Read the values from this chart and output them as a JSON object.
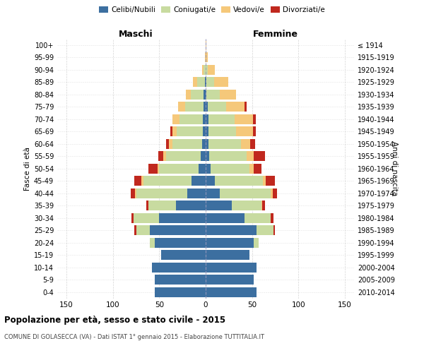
{
  "age_groups": [
    "0-4",
    "5-9",
    "10-14",
    "15-19",
    "20-24",
    "25-29",
    "30-34",
    "35-39",
    "40-44",
    "45-49",
    "50-54",
    "55-59",
    "60-64",
    "65-69",
    "70-74",
    "75-79",
    "80-84",
    "85-89",
    "90-94",
    "95-99",
    "100+"
  ],
  "birth_years": [
    "2010-2014",
    "2005-2009",
    "2000-2004",
    "1995-1999",
    "1990-1994",
    "1985-1989",
    "1980-1984",
    "1975-1979",
    "1970-1974",
    "1965-1969",
    "1960-1964",
    "1955-1959",
    "1950-1954",
    "1945-1949",
    "1940-1944",
    "1935-1939",
    "1930-1934",
    "1925-1929",
    "1920-1924",
    "1915-1919",
    "≤ 1914"
  ],
  "male": {
    "celibi": [
      55,
      55,
      58,
      48,
      55,
      60,
      50,
      32,
      20,
      15,
      8,
      5,
      4,
      3,
      3,
      2,
      2,
      1,
      0,
      0,
      0
    ],
    "coniugati": [
      0,
      0,
      0,
      0,
      5,
      15,
      28,
      30,
      55,
      52,
      42,
      38,
      32,
      28,
      25,
      20,
      14,
      8,
      2,
      0,
      0
    ],
    "vedovi": [
      0,
      0,
      0,
      0,
      0,
      0,
      0,
      0,
      1,
      2,
      2,
      3,
      4,
      5,
      8,
      8,
      5,
      5,
      2,
      1,
      0
    ],
    "divorziati": [
      0,
      0,
      0,
      0,
      0,
      2,
      2,
      2,
      5,
      8,
      10,
      5,
      3,
      2,
      0,
      0,
      0,
      0,
      0,
      0,
      0
    ]
  },
  "female": {
    "nubili": [
      55,
      52,
      55,
      47,
      52,
      55,
      42,
      28,
      15,
      10,
      5,
      4,
      3,
      3,
      3,
      2,
      1,
      1,
      0,
      0,
      0
    ],
    "coniugate": [
      0,
      0,
      0,
      0,
      5,
      18,
      28,
      32,
      55,
      52,
      42,
      40,
      35,
      30,
      28,
      20,
      14,
      8,
      2,
      0,
      0
    ],
    "vedove": [
      0,
      0,
      0,
      0,
      0,
      0,
      0,
      1,
      2,
      3,
      5,
      8,
      10,
      18,
      20,
      20,
      18,
      15,
      8,
      2,
      1
    ],
    "divorziate": [
      0,
      0,
      0,
      0,
      0,
      2,
      3,
      3,
      5,
      10,
      8,
      12,
      5,
      3,
      3,
      2,
      0,
      0,
      0,
      0,
      0
    ]
  },
  "color_celibi": "#3c6fa0",
  "color_coniugati": "#c8dba0",
  "color_vedovi": "#f5c87a",
  "color_divorziati": "#c0281e",
  "title": "Popolazione per età, sesso e stato civile - 2015",
  "subtitle": "COMUNE DI GOLASECCA (VA) - Dati ISTAT 1° gennaio 2015 - Elaborazione TUTTITALIA.IT",
  "label_maschi": "Maschi",
  "label_femmine": "Femmine",
  "ylabel_left": "Fasce di età",
  "ylabel_right": "Anni di nascita",
  "xlim": 160,
  "background": "#ffffff",
  "grid_color": "#d0d0d0",
  "legend_labels": [
    "Celibi/Nubili",
    "Coniugati/e",
    "Vedovi/e",
    "Divorziati/e"
  ]
}
